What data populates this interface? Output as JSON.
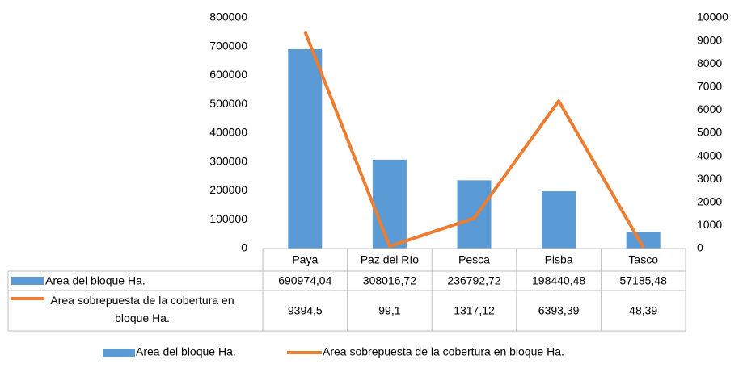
{
  "chart_data": {
    "type": "bar",
    "categories": [
      "Paya",
      "Paz del Río",
      "Pesca",
      "Pisba",
      "Tasco"
    ],
    "series": [
      {
        "name": "Area del bloque Ha.",
        "type": "bar",
        "color": "#5b9bd5",
        "values": [
          690974.04,
          308016.72,
          236792.72,
          198440.48,
          57185.48
        ],
        "value_labels": [
          "690974,04",
          "308016,72",
          "236792,72",
          "198440,48",
          "57185,48"
        ]
      },
      {
        "name": "Area sobrepuesta de la cobertura en bloque Ha.",
        "type": "line",
        "axis": "y2",
        "color": "#ed7d31",
        "values": [
          9394.5,
          99.1,
          1317.12,
          6393.39,
          48.39
        ],
        "value_labels": [
          "9394,5",
          "99,1",
          "1317,12",
          "6393,39",
          "48,39"
        ]
      }
    ],
    "ylim": [
      0,
      800000
    ],
    "yticks": [
      0,
      100000,
      200000,
      300000,
      400000,
      500000,
      600000,
      700000,
      800000
    ],
    "y2lim": [
      0,
      10000
    ],
    "y2ticks": [
      0,
      1000,
      2000,
      3000,
      4000,
      5000,
      6000,
      7000,
      8000,
      9000,
      10000
    ],
    "legend": "bottom",
    "data_table": true
  }
}
